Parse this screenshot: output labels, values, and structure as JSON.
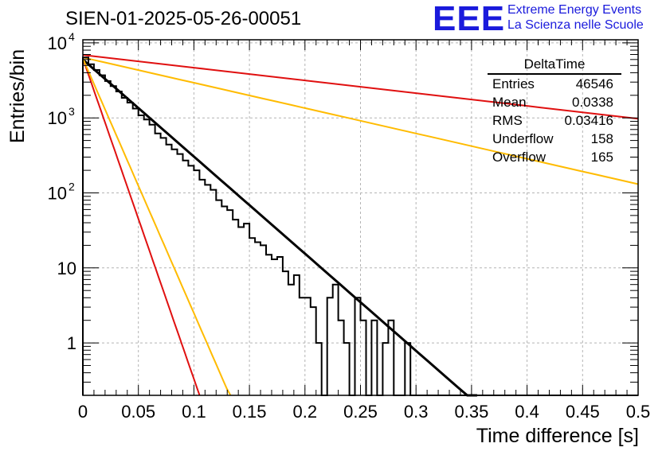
{
  "chart_data": {
    "type": "histogram",
    "title": "SIEN-01-2025-05-26-00051",
    "xlabel": "Time difference [s]",
    "ylabel": "Entries/bin",
    "xlim": [
      0,
      0.5
    ],
    "ylim": [
      0.2,
      11000
    ],
    "yscale": "log",
    "grid": true,
    "x_ticks": [
      "0",
      "0.05",
      "0.1",
      "0.15",
      "0.2",
      "0.25",
      "0.3",
      "0.35",
      "0.4",
      "0.45",
      "0.5"
    ],
    "y_ticks": [
      {
        "value": 1,
        "label": "1"
      },
      {
        "value": 10,
        "label": "10"
      },
      {
        "value": 100,
        "label": "10",
        "exp": "2"
      },
      {
        "value": 1000,
        "label": "10",
        "exp": "3"
      },
      {
        "value": 10000,
        "label": "10",
        "exp": "4"
      }
    ],
    "bin_width": 0.005,
    "histogram_counts": [
      6400,
      5200,
      4350,
      3700,
      3100,
      2650,
      2250,
      1850,
      1600,
      1330,
      1080,
      950,
      810,
      620,
      540,
      440,
      380,
      330,
      270,
      230,
      200,
      150,
      128,
      110,
      80,
      66,
      59,
      44,
      35,
      39,
      25,
      22,
      20,
      15,
      13,
      14,
      9,
      6,
      8,
      4,
      4,
      3,
      1,
      0,
      4,
      6,
      2,
      1,
      0,
      4,
      2,
      0,
      2,
      0,
      1,
      2,
      0,
      0,
      1,
      0,
      0,
      0,
      0,
      0,
      0,
      0,
      0,
      0,
      0,
      0,
      0,
      0,
      0,
      0,
      0,
      0,
      0,
      0,
      0,
      0,
      0,
      0,
      0,
      0,
      0,
      0,
      0,
      0,
      0,
      0,
      0,
      0,
      0,
      0,
      0,
      0,
      0,
      0,
      0,
      0
    ],
    "fits": [
      {
        "name": "fit",
        "color": "#000000",
        "width": 3,
        "x_range": [
          0,
          0.355
        ],
        "y0": 6000,
        "slope_per_s": -29.8
      },
      {
        "name": "red-steep",
        "color": "#e01010",
        "width": 2,
        "x_range": [
          0,
          0.105
        ],
        "y0": 6200,
        "slope_per_s": -98.4
      },
      {
        "name": "orange-steep",
        "color": "#ffbb00",
        "width": 2,
        "x_range": [
          0,
          0.133
        ],
        "y0": 6200,
        "slope_per_s": -78.2
      },
      {
        "name": "red-shallow",
        "color": "#e01010",
        "width": 2,
        "x_range": [
          0,
          0.5
        ],
        "y0": 6900,
        "slope_per_s": -3.91
      },
      {
        "name": "orange-shallow",
        "color": "#ffbb00",
        "width": 2,
        "x_range": [
          0,
          0.5
        ],
        "y0": 6400,
        "slope_per_s": -7.78
      }
    ]
  },
  "logo": {
    "text": "EEE",
    "line1": "Extreme Energy Events",
    "line2": "La Scienza nelle Scuole"
  },
  "stats": {
    "title": "DeltaTime",
    "rows": [
      {
        "label": "Entries",
        "value": "46546"
      },
      {
        "label": "Mean",
        "value": "0.0338"
      },
      {
        "label": "RMS",
        "value": "0.03416"
      },
      {
        "label": "Underflow",
        "value": "158"
      },
      {
        "label": "Overflow",
        "value": "165"
      }
    ]
  },
  "colors": {
    "frame": "#000000",
    "grid": "#b4b4b4",
    "logo": "#1a1adc"
  }
}
